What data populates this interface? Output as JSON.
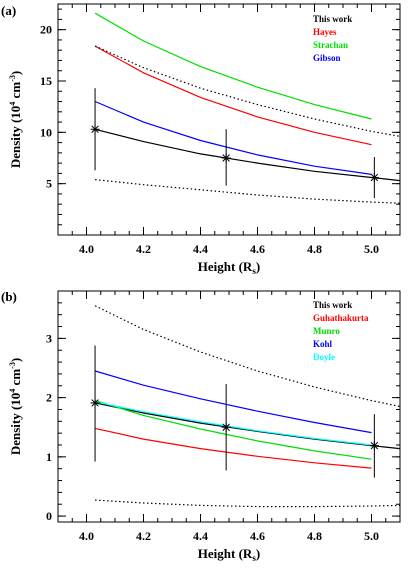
{
  "chart_data": [
    {
      "type": "line",
      "panel_label": "(a)",
      "xlabel": "Height (R",
      "xlabel_sub": "s",
      "ylabel": "Density (10",
      "ylabel_sup": "4",
      "ylabel_rest": " cm",
      "ylabel_rest_sup": "-3",
      "xlim": [
        3.9,
        5.1
      ],
      "ylim": [
        0,
        22.5
      ],
      "xticks": [
        4.0,
        4.2,
        4.4,
        4.6,
        4.8,
        5.0
      ],
      "xtick_labels": [
        "4.0",
        "4.2",
        "4.4",
        "4.6",
        "4.8",
        "5.0"
      ],
      "yticks": [
        5,
        10,
        15,
        20
      ],
      "ytick_labels": [
        "5",
        "10",
        "15",
        "20"
      ],
      "legend_position": "top-right",
      "series": [
        {
          "name": "This work",
          "color": "#000000",
          "style": "solid",
          "x": [
            4.03,
            4.2,
            4.4,
            4.6,
            4.8,
            5.0,
            5.1
          ],
          "y": [
            10.3,
            9.1,
            7.9,
            7.0,
            6.2,
            5.6,
            5.3
          ]
        },
        {
          "name": "Hayes",
          "color": "#ff0000",
          "style": "solid",
          "x": [
            4.03,
            4.2,
            4.4,
            4.6,
            4.8,
            5.0
          ],
          "y": [
            18.4,
            15.8,
            13.4,
            11.5,
            10.0,
            8.8
          ]
        },
        {
          "name": "Strachan",
          "color": "#00dd00",
          "style": "solid",
          "x": [
            4.03,
            4.2,
            4.4,
            4.6,
            4.8,
            5.0
          ],
          "y": [
            21.6,
            18.9,
            16.4,
            14.4,
            12.7,
            11.3
          ]
        },
        {
          "name": "Gibson",
          "color": "#0000ff",
          "style": "solid",
          "x": [
            4.03,
            4.2,
            4.4,
            4.6,
            4.8,
            5.0
          ],
          "y": [
            13.0,
            11.0,
            9.2,
            7.8,
            6.7,
            5.9
          ]
        },
        {
          "name": "",
          "color": "#000000",
          "style": "dotted",
          "x": [
            4.03,
            4.2,
            4.4,
            4.6,
            4.8,
            5.0,
            5.1
          ],
          "y": [
            18.4,
            16.3,
            14.3,
            12.7,
            11.3,
            10.1,
            9.6
          ]
        },
        {
          "name": "",
          "color": "#000000",
          "style": "dotted",
          "x": [
            4.03,
            4.2,
            4.4,
            4.6,
            4.8,
            5.0,
            5.1
          ],
          "y": [
            5.4,
            4.9,
            4.4,
            3.9,
            3.5,
            3.2,
            3.1
          ]
        }
      ],
      "points": [
        {
          "x": 4.03,
          "y": 10.3,
          "err_low": 6.3,
          "err_high": 14.3
        },
        {
          "x": 4.49,
          "y": 7.5,
          "err_low": 4.8,
          "err_high": 10.3
        },
        {
          "x": 5.01,
          "y": 5.6,
          "err_low": 3.6,
          "err_high": 7.6
        }
      ]
    },
    {
      "type": "line",
      "panel_label": "(b)",
      "xlabel": "Height (R",
      "xlabel_sub": "s",
      "ylabel": "Density (10",
      "ylabel_sup": "4",
      "ylabel_rest": " cm",
      "ylabel_rest_sup": "-3",
      "xlim": [
        3.9,
        5.1
      ],
      "ylim": [
        -0.1,
        3.8
      ],
      "xticks": [
        4.0,
        4.2,
        4.4,
        4.6,
        4.8,
        5.0
      ],
      "xtick_labels": [
        "4.0",
        "4.2",
        "4.4",
        "4.6",
        "4.8",
        "5.0"
      ],
      "yticks": [
        0,
        1,
        2,
        3
      ],
      "ytick_labels": [
        "0",
        "1",
        "2",
        "3"
      ],
      "legend_position": "top-right",
      "series": [
        {
          "name": "This work",
          "color": "#000000",
          "style": "solid",
          "x": [
            4.03,
            4.2,
            4.4,
            4.6,
            4.8,
            5.0,
            5.1
          ],
          "y": [
            1.91,
            1.74,
            1.57,
            1.43,
            1.3,
            1.19,
            1.14
          ]
        },
        {
          "name": "Guhathakurta",
          "color": "#ff0000",
          "style": "solid",
          "x": [
            4.03,
            4.2,
            4.4,
            4.6,
            4.8,
            5.0
          ],
          "y": [
            1.48,
            1.3,
            1.14,
            1.01,
            0.9,
            0.81
          ]
        },
        {
          "name": "Munro",
          "color": "#00dd00",
          "style": "solid",
          "x": [
            4.03,
            4.2,
            4.4,
            4.6,
            4.8,
            5.0
          ],
          "y": [
            1.95,
            1.7,
            1.47,
            1.27,
            1.1,
            0.96
          ]
        },
        {
          "name": "Kohl",
          "color": "#0000ff",
          "style": "solid",
          "x": [
            4.03,
            4.2,
            4.4,
            4.6,
            4.8,
            5.0
          ],
          "y": [
            2.45,
            2.21,
            1.98,
            1.77,
            1.58,
            1.41
          ]
        },
        {
          "name": "Doyle",
          "color": "#00ffff",
          "style": "solid",
          "x": [
            4.03,
            4.2,
            4.4,
            4.6,
            4.8,
            5.0
          ],
          "y": [
            1.93,
            1.76,
            1.59,
            1.44,
            1.31,
            1.2
          ]
        },
        {
          "name": "",
          "color": "#000000",
          "style": "dotted",
          "x": [
            4.03,
            4.2,
            4.4,
            4.6,
            4.8,
            5.0,
            5.1
          ],
          "y": [
            3.55,
            3.15,
            2.77,
            2.45,
            2.18,
            1.95,
            1.85
          ]
        },
        {
          "name": "",
          "color": "#000000",
          "style": "dotted",
          "x": [
            4.03,
            4.2,
            4.4,
            4.6,
            4.8,
            5.0,
            5.1
          ],
          "y": [
            0.27,
            0.22,
            0.18,
            0.16,
            0.16,
            0.17,
            0.18
          ]
        }
      ],
      "points": [
        {
          "x": 4.03,
          "y": 1.91,
          "err_low": 0.92,
          "err_high": 2.88
        },
        {
          "x": 4.49,
          "y": 1.5,
          "err_low": 0.77,
          "err_high": 2.23
        },
        {
          "x": 5.01,
          "y": 1.19,
          "err_low": 0.65,
          "err_high": 1.72
        }
      ]
    }
  ]
}
